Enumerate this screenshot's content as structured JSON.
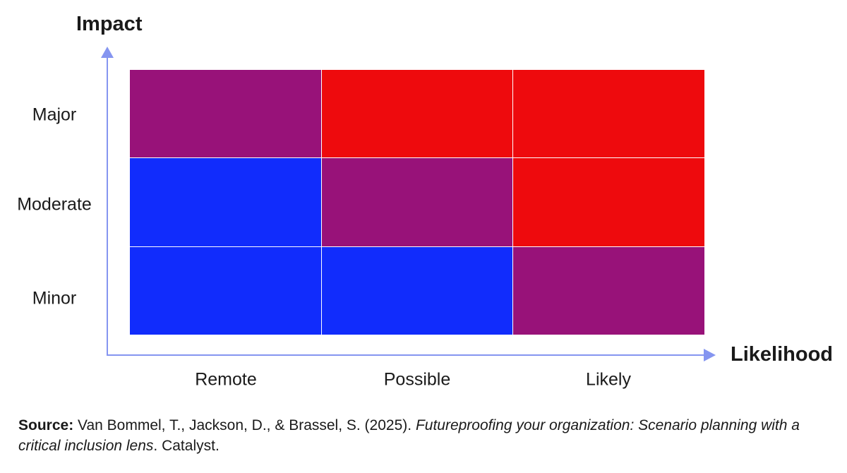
{
  "diagram": {
    "y_axis_title": "Impact",
    "x_axis_title": "Likelihood",
    "rows": [
      "Major",
      "Moderate",
      "Minor"
    ],
    "columns": [
      "Remote",
      "Possible",
      "Likely"
    ],
    "colors": {
      "high": "#ee0a0d",
      "medium": "#981279",
      "low": "#112cfc",
      "axis": "#8595f0"
    },
    "matrix": [
      [
        "medium",
        "high",
        "high"
      ],
      [
        "low",
        "medium",
        "high"
      ],
      [
        "low",
        "low",
        "medium"
      ]
    ]
  },
  "source": {
    "label": "Source:",
    "authors": " Van Bommel, T., Jackson, D., & Brassel, S. (2025). ",
    "title": "Futureproofing your organization: Scenario planning with a critical inclusion lens",
    "publisher": ". Catalyst."
  }
}
